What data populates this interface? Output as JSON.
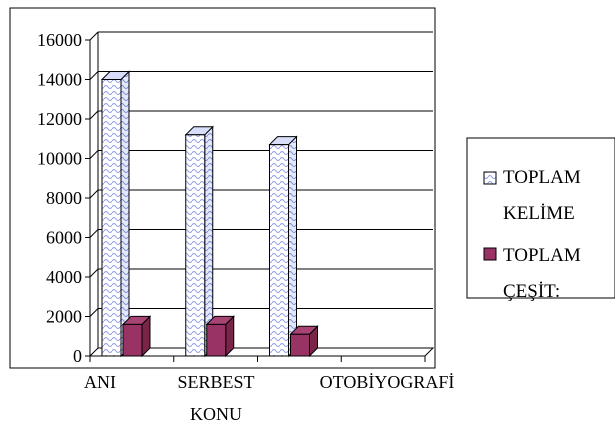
{
  "chart_data": {
    "type": "bar",
    "categories": [
      "ANI",
      "SERBEST KONU",
      "OTOBİYOGRAFİ"
    ],
    "series": [
      {
        "name": "TOPLAM KELİME",
        "values": [
          14000,
          11200,
          10700
        ],
        "color": "#c9d3f5",
        "pattern": "wavy"
      },
      {
        "name": "TOPLAM ÇEŞİT:",
        "values": [
          1600,
          1600,
          1100
        ],
        "color": "#993366",
        "pattern": "solid"
      }
    ],
    "yticks": [
      0,
      2000,
      4000,
      6000,
      8000,
      10000,
      12000,
      14000,
      16000
    ],
    "ylim": [
      0,
      16000
    ],
    "gridlines": true,
    "style": "3d-clustered-column",
    "legend_position": "right",
    "title": "",
    "xlabel": "",
    "ylabel": ""
  }
}
